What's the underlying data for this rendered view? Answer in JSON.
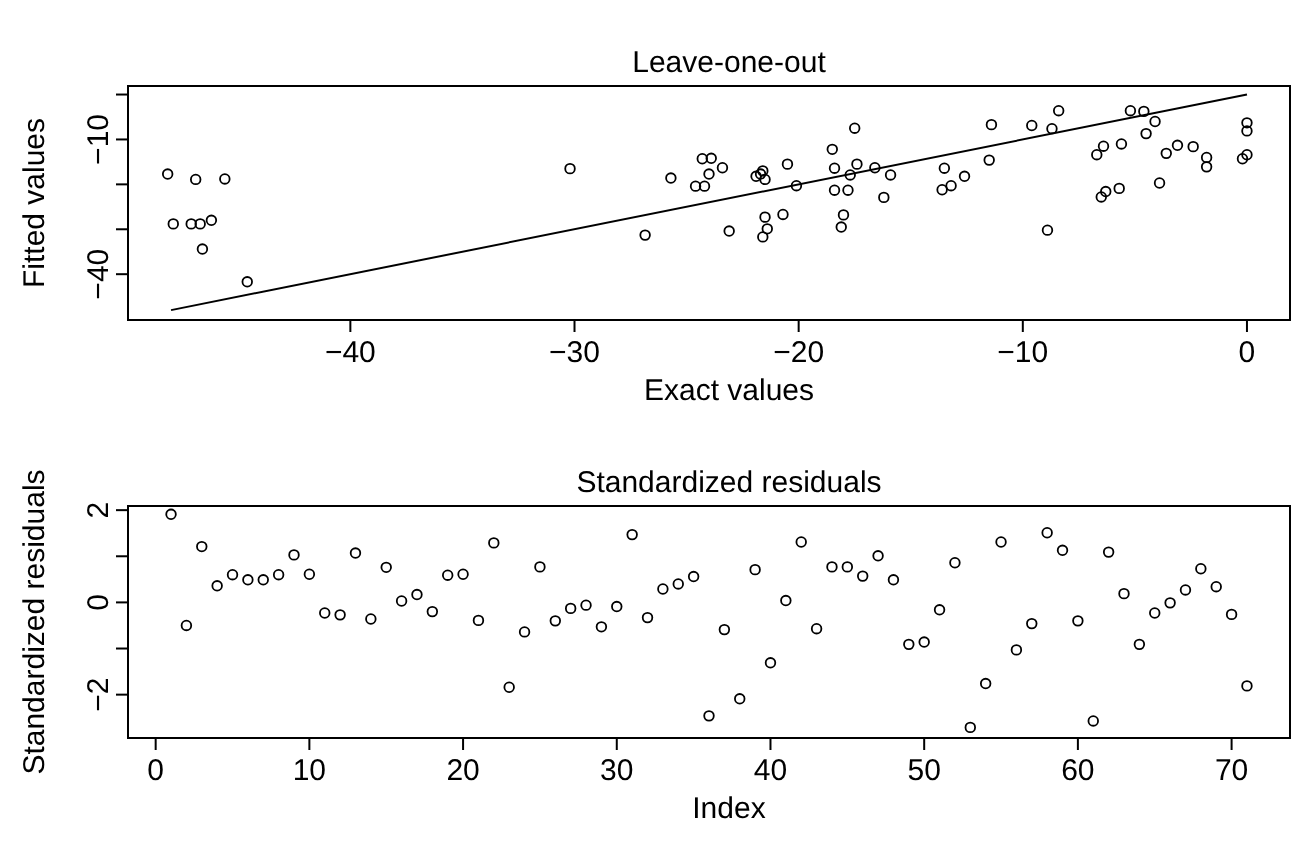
{
  "chart_data": [
    {
      "type": "scatter",
      "title": "Leave-one-out",
      "xlabel": "Exact values",
      "ylabel": "Fitted values",
      "marker": "circle",
      "grid": false,
      "xlim": [
        -49.92,
        1.92
      ],
      "ylim": [
        -50.2,
        1.9
      ],
      "xticks": [
        -40,
        -30,
        -20,
        -10,
        0
      ],
      "yticks": [
        {
          "value": 0,
          "label": null
        },
        -10,
        {
          "value": -20,
          "label": null
        },
        {
          "value": -30,
          "label": null
        },
        -40
      ],
      "series": [
        {
          "color": "#000000",
          "x": [
            -48.15,
            -46.9,
            -45.6,
            -47.9,
            -47.1,
            -46.7,
            -46.2,
            -46.6,
            -44.6,
            -30.2,
            -26.85,
            -25.7,
            -24.6,
            -24.2,
            -24.3,
            -23.9,
            -24.0,
            -23.4,
            -23.1,
            -21.9,
            -21.7,
            -21.6,
            -21.5,
            -21.5,
            -21.4,
            -21.6,
            -20.7,
            -20.5,
            -20.1,
            -18.5,
            -18.4,
            -18.4,
            -17.8,
            -18.0,
            -18.1,
            -17.7,
            -17.4,
            -17.5,
            -16.6,
            -15.9,
            -16.2,
            -13.5,
            -13.6,
            -13.2,
            -12.6,
            -11.5,
            -11.4,
            -9.6,
            -8.7,
            -8.4,
            -8.9,
            -6.7,
            -6.4,
            -5.6,
            -6.5,
            -6.3,
            -5.7,
            -5.2,
            -4.6,
            -4.1,
            -4.5,
            -3.6,
            -3.9,
            -3.1,
            -2.4,
            -1.8,
            -1.8,
            -0.2,
            0,
            0,
            0
          ],
          "values": [
            -17.7,
            -18.9,
            -18.8,
            -28.8,
            -28.8,
            -28.8,
            -28,
            -34.4,
            -41.7,
            -16.5,
            -31.3,
            -18.6,
            -20.4,
            -20.4,
            -14.3,
            -14.2,
            -17.7,
            -16.3,
            -30.4,
            -18.2,
            -17.7,
            -17.0,
            -18.9,
            -27.3,
            -29.9,
            -31.7,
            -26.7,
            -15.5,
            -20.3,
            -12.2,
            -16.4,
            -21.3,
            -21.3,
            -26.8,
            -29.5,
            -17.9,
            -15.5,
            -7.5,
            -16.3,
            -17.9,
            -22.9,
            -16.4,
            -21.2,
            -20.3,
            -18.2,
            -14.6,
            -6.7,
            -6.9,
            -7.6,
            -3.6,
            -30.2,
            -13.4,
            -11.5,
            -11.0,
            -22.8,
            -21.6,
            -20.9,
            -3.6,
            -3.75,
            -6.0,
            -8.7,
            -13.1,
            -19.7,
            -11.3,
            -11.6,
            -14.0,
            -16.1,
            -14.3,
            -13.4,
            -6.3,
            -8.1
          ]
        },
        {
          "type": "line",
          "marker": "none",
          "color": "#000000",
          "x": [
            -48,
            0
          ],
          "values": [
            -48,
            0
          ]
        }
      ]
    },
    {
      "type": "scatter",
      "title": "Standardized residuals",
      "xlabel": "Index",
      "ylabel": "Standardized residuals",
      "marker": "circle",
      "grid": false,
      "xlim": [
        -1.8,
        73.8
      ],
      "ylim": [
        -2.94,
        2.09
      ],
      "xticks": [
        0,
        10,
        20,
        30,
        40,
        50,
        60,
        70
      ],
      "yticks": [
        2,
        {
          "value": 1,
          "label": null
        },
        0,
        {
          "value": -1,
          "label": null
        },
        -2
      ],
      "series": [
        {
          "color": "#000000",
          "x": [
            1,
            2,
            3,
            4,
            5,
            6,
            7,
            8,
            9,
            10,
            11,
            12,
            13,
            14,
            15,
            16,
            17,
            18,
            19,
            20,
            21,
            22,
            23,
            24,
            25,
            26,
            27,
            28,
            29,
            30,
            31,
            32,
            33,
            34,
            35,
            36,
            37,
            38,
            39,
            40,
            41,
            42,
            43,
            44,
            45,
            46,
            47,
            48,
            49,
            50,
            51,
            52,
            53,
            54,
            55,
            56,
            57,
            58,
            59,
            60,
            61,
            62,
            63,
            64,
            65,
            66,
            67,
            68,
            69,
            70,
            71
          ],
          "values": [
            1.91,
            -0.5,
            1.21,
            0.36,
            0.6,
            0.49,
            0.49,
            0.6,
            1.03,
            0.61,
            -0.23,
            -0.27,
            1.07,
            -0.36,
            0.76,
            0.03,
            0.17,
            -0.2,
            0.59,
            0.61,
            -0.39,
            1.29,
            -1.84,
            -0.64,
            0.77,
            -0.4,
            -0.13,
            -0.06,
            -0.53,
            -0.09,
            1.47,
            -0.33,
            0.29,
            0.4,
            0.56,
            -2.46,
            -0.59,
            -2.09,
            0.71,
            -1.31,
            0.04,
            1.31,
            -0.57,
            0.77,
            0.77,
            0.57,
            1.01,
            0.49,
            -0.91,
            -0.86,
            -0.16,
            0.86,
            -2.71,
            -1.76,
            1.31,
            -1.03,
            -0.46,
            1.51,
            1.13,
            -0.4,
            -2.57,
            1.09,
            0.19,
            -0.91,
            -0.23,
            -0.01,
            0.27,
            0.73,
            0.34,
            -0.26,
            -1.81
          ]
        }
      ]
    }
  ]
}
